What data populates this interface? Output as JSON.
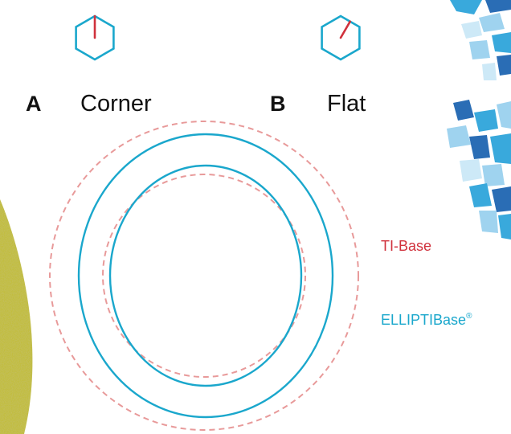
{
  "labels": {
    "a_letter": "A",
    "a_word": "Corner",
    "b_letter": "B",
    "b_word": "Flat"
  },
  "legend": {
    "ti_base": "TI-Base",
    "ellipti_base": "ELLIPTIBase",
    "ellipti_sup": "®"
  },
  "colors": {
    "ti_base_dashed": "#e89a9a",
    "ti_base_label": "#d0313c",
    "ellipti_base": "#1aa7cc",
    "hexagon_outline": "#1aa7cc",
    "orientation_marker": "#d0313c",
    "left_texture": "#c2bd3e",
    "right_fragments": [
      "#2a6db5",
      "#39a9dc",
      "#9fd3ef",
      "#cde9f7"
    ]
  }
}
